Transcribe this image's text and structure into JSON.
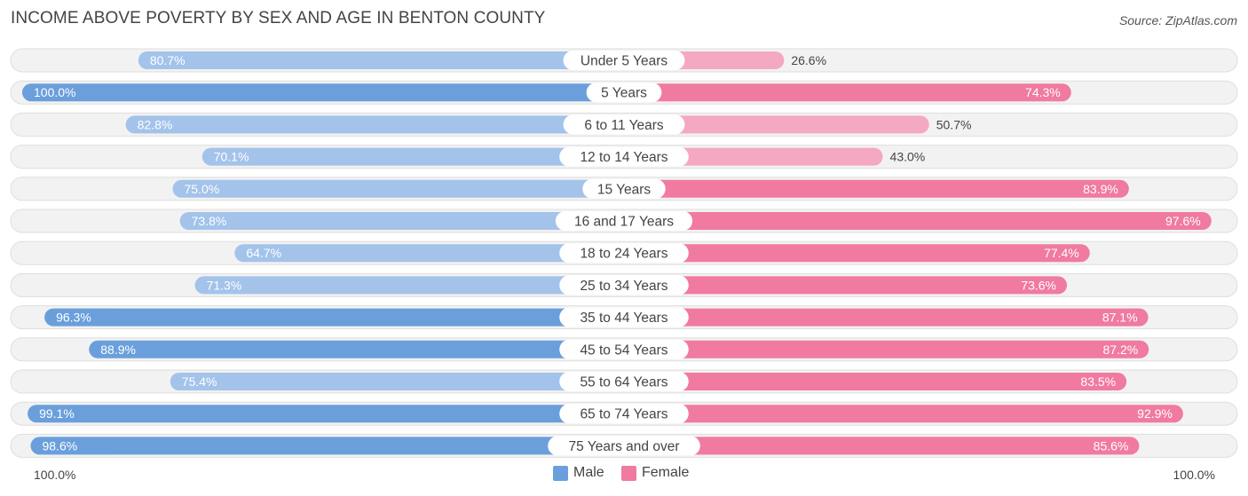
{
  "title": "INCOME ABOVE POVERTY BY SEX AND AGE IN BENTON COUNTY",
  "source": "Source: ZipAtlas.com",
  "colors": {
    "male_strong": "#6a9fdc",
    "male_light": "#a3c3ea",
    "female_strong": "#f07aa0",
    "female_light": "#f5a8c1",
    "row_bg": "#f2f2f2",
    "row_border": "#dedede"
  },
  "legend": {
    "male_label": "Male",
    "female_label": "Female"
  },
  "axis": {
    "left_label": "100.0%",
    "right_label": "100.0%"
  },
  "chart_data": {
    "type": "bar",
    "orientation": "horizontal-diverging",
    "title": "INCOME ABOVE POVERTY BY SEX AND AGE IN BENTON COUNTY",
    "categories": [
      "Under 5 Years",
      "5 Years",
      "6 to 11 Years",
      "12 to 14 Years",
      "15 Years",
      "16 and 17 Years",
      "18 to 24 Years",
      "25 to 34 Years",
      "35 to 44 Years",
      "45 to 54 Years",
      "55 to 64 Years",
      "65 to 74 Years",
      "75 Years and over"
    ],
    "series": [
      {
        "name": "Male",
        "values": [
          80.7,
          100.0,
          82.8,
          70.1,
          75.0,
          73.8,
          64.7,
          71.3,
          96.3,
          88.9,
          75.4,
          99.1,
          98.6
        ],
        "labels": [
          "80.7%",
          "100.0%",
          "82.8%",
          "70.1%",
          "75.0%",
          "73.8%",
          "64.7%",
          "71.3%",
          "96.3%",
          "88.9%",
          "75.4%",
          "99.1%",
          "98.6%"
        ]
      },
      {
        "name": "Female",
        "values": [
          26.6,
          74.3,
          50.7,
          43.0,
          83.9,
          97.6,
          77.4,
          73.6,
          87.1,
          87.2,
          83.5,
          92.9,
          85.6
        ],
        "labels": [
          "26.6%",
          "74.3%",
          "50.7%",
          "43.0%",
          "83.9%",
          "97.6%",
          "77.4%",
          "73.6%",
          "87.1%",
          "87.2%",
          "83.5%",
          "92.9%",
          "85.6%"
        ]
      }
    ],
    "xlim": [
      0,
      100
    ],
    "legend_position": "bottom-center"
  }
}
